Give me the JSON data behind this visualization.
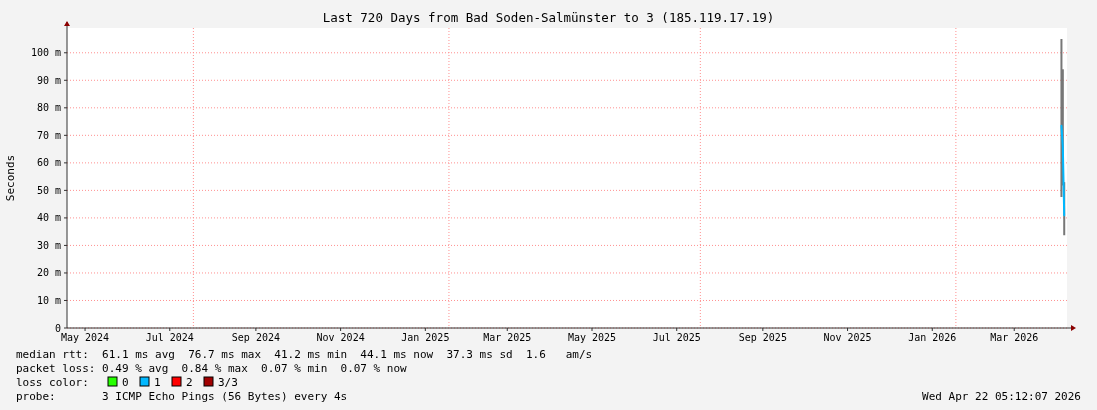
{
  "chart_data": {
    "type": "line",
    "title": "Last 720 Days from Bad Soden-Salmünster to 3 (185.119.17.19)",
    "ylabel": "Seconds",
    "xlim": [
      "2024-05-02",
      "2026-04-22"
    ],
    "xticks": [
      {
        "value": "2024-05-15",
        "label": "May 2024"
      },
      {
        "value": "2024-07-15",
        "label": "Jul 2024"
      },
      {
        "value": "2024-09-15",
        "label": "Sep 2024"
      },
      {
        "value": "2024-11-15",
        "label": "Nov 2024"
      },
      {
        "value": "2025-01-15",
        "label": "Jan 2025"
      },
      {
        "value": "2025-03-15",
        "label": "Mar 2025"
      },
      {
        "value": "2025-05-15",
        "label": "May 2025"
      },
      {
        "value": "2025-07-15",
        "label": "Jul 2025"
      },
      {
        "value": "2025-09-15",
        "label": "Sep 2025"
      },
      {
        "value": "2025-11-15",
        "label": "Nov 2025"
      },
      {
        "value": "2026-01-15",
        "label": "Jan 2026"
      },
      {
        "value": "2026-03-15",
        "label": "Mar 2026"
      }
    ],
    "ylim": [
      0,
      109
    ],
    "yticks": [
      {
        "value": 0,
        "label": "0"
      },
      {
        "value": 10,
        "label": "10 m"
      },
      {
        "value": 20,
        "label": "20 m"
      },
      {
        "value": 30,
        "label": "30 m"
      },
      {
        "value": 40,
        "label": "40 m"
      },
      {
        "value": 50,
        "label": "50 m"
      },
      {
        "value": 60,
        "label": "60 m"
      },
      {
        "value": 70,
        "label": "70 m"
      },
      {
        "value": 80,
        "label": "80 m"
      },
      {
        "value": 90,
        "label": "90 m"
      },
      {
        "value": 100,
        "label": "100 m"
      }
    ],
    "grid": "y",
    "legend": "bottom",
    "ref_lines": [
      {
        "axis": "x",
        "value": "2024-08-01",
        "color": "#ff9090",
        "line_style": "dotted"
      },
      {
        "axis": "x",
        "value": "2025-02-01",
        "color": "#ff9090",
        "line_style": "dotted"
      },
      {
        "axis": "x",
        "value": "2025-08-01",
        "color": "#ff9090",
        "line_style": "dotted"
      },
      {
        "axis": "x",
        "value": "2026-02-01",
        "color": "#ff9090",
        "line_style": "dotted"
      }
    ],
    "series": [
      {
        "name": "0",
        "color": "#26ff00"
      },
      {
        "name": "1",
        "color": "#00b8ff",
        "x": [
          "2026-04-18",
          "2026-04-19",
          "2026-04-20"
        ],
        "values": [
          73.5,
          65.7,
          41
        ],
        "lower": [
          47.6,
          51.8,
          33.7
        ],
        "upper": [
          105,
          94,
          53
        ]
      },
      {
        "name": "2",
        "color": "#ff0000"
      },
      {
        "name": "3/3",
        "color": "#a00000"
      }
    ],
    "annotations": [
      "median rtt:  61.1 ms avg  76.7 ms max  41.2 ms min  44.1 ms now  37.3 ms sd  1.6   am/s",
      "packet loss: 0.49 % avg  0.84 % max  0.07 % min  0.07 % now",
      "loss color:",
      "probe:       3 ICMP Echo Pings (56 Bytes) every 4s",
      "Wed Apr 22 05:12:07 2026"
    ]
  }
}
